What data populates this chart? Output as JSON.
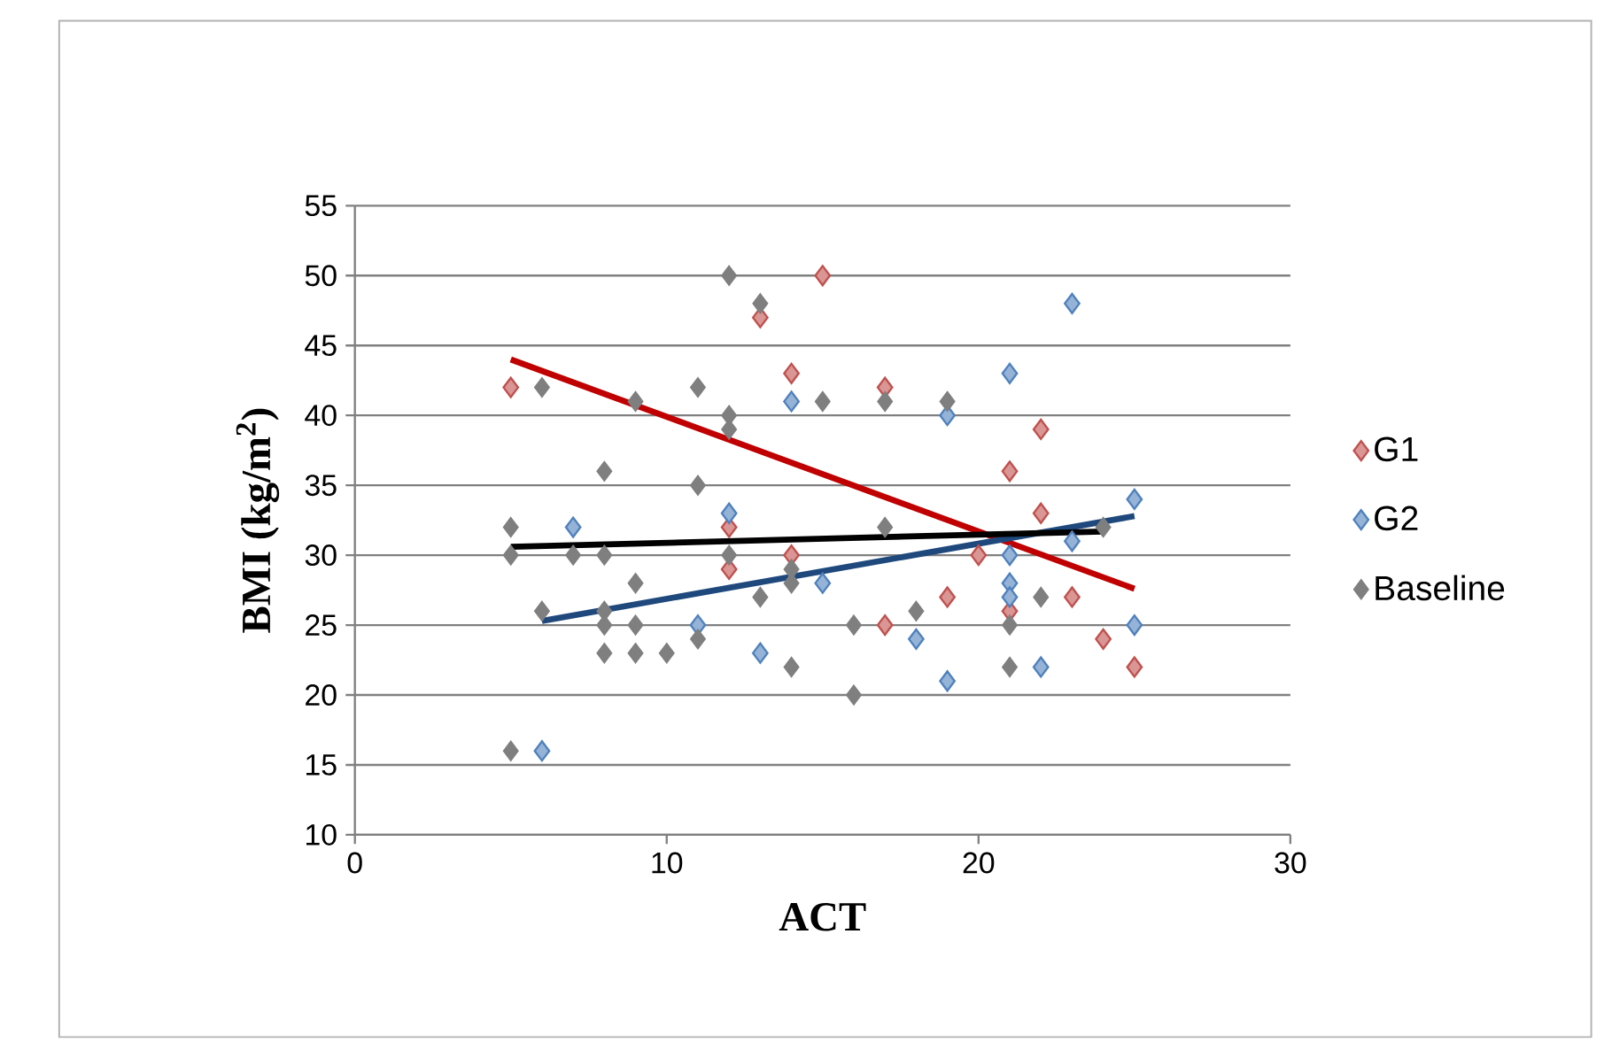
{
  "chart_data": {
    "type": "scatter",
    "xlabel": "ACT",
    "ylabel": "BMI (kg/m$^{2}$)",
    "xlim": [
      0,
      30
    ],
    "xticks": [
      0,
      10,
      20,
      30
    ],
    "ylim": [
      10,
      55
    ],
    "yticks": [
      10,
      15,
      20,
      25,
      30,
      35,
      40,
      45,
      50,
      55
    ],
    "grid": "y",
    "legend": "right",
    "marker": "diamond",
    "series": [
      {
        "name": "G1",
        "color": "#c0504d",
        "x": [
          5,
          12,
          12,
          13,
          14,
          14,
          15,
          17,
          17,
          19,
          20,
          21,
          21,
          22,
          22,
          23,
          24,
          25
        ],
        "values": [
          42,
          32,
          29,
          47,
          43,
          30,
          50,
          42,
          25,
          27,
          30,
          36,
          26,
          39,
          33,
          27,
          24,
          22
        ]
      },
      {
        "name": "G2",
        "color": "#4f81bd",
        "x": [
          6,
          7,
          11,
          12,
          13,
          14,
          15,
          18,
          19,
          19,
          21,
          21,
          21,
          21,
          22,
          23,
          23,
          25,
          25
        ],
        "values": [
          16,
          32,
          25,
          33,
          23,
          41,
          28,
          24,
          40,
          21,
          43,
          30,
          28,
          27,
          22,
          48,
          31,
          34,
          25
        ]
      },
      {
        "name": "Baseline",
        "color": "#7f7f7f",
        "x": [
          5,
          5,
          5,
          6,
          6,
          7,
          8,
          8,
          8,
          8,
          8,
          9,
          9,
          9,
          9,
          10,
          11,
          11,
          11,
          12,
          12,
          12,
          12,
          13,
          13,
          14,
          14,
          14,
          15,
          16,
          16,
          17,
          17,
          18,
          19,
          21,
          21,
          22,
          24
        ],
        "values": [
          32,
          30,
          16,
          42,
          26,
          30,
          36,
          30,
          26,
          25,
          23,
          41,
          28,
          25,
          23,
          23,
          42,
          35,
          24,
          50,
          40,
          39,
          30,
          48,
          27,
          29,
          28,
          22,
          41,
          25,
          20,
          41,
          32,
          26,
          41,
          25,
          22,
          27,
          32
        ]
      },
      {
        "type": "line",
        "marker": "none",
        "color": "#c00000",
        "x": [
          5,
          25
        ],
        "values": [
          44,
          27.6
        ]
      },
      {
        "type": "line",
        "marker": "none",
        "color": "#1f497d",
        "x": [
          6,
          25
        ],
        "values": [
          25.3,
          32.8
        ]
      },
      {
        "type": "line",
        "marker": "none",
        "color": "#000000",
        "x": [
          5,
          24
        ],
        "values": [
          30.6,
          31.7
        ]
      }
    ]
  }
}
